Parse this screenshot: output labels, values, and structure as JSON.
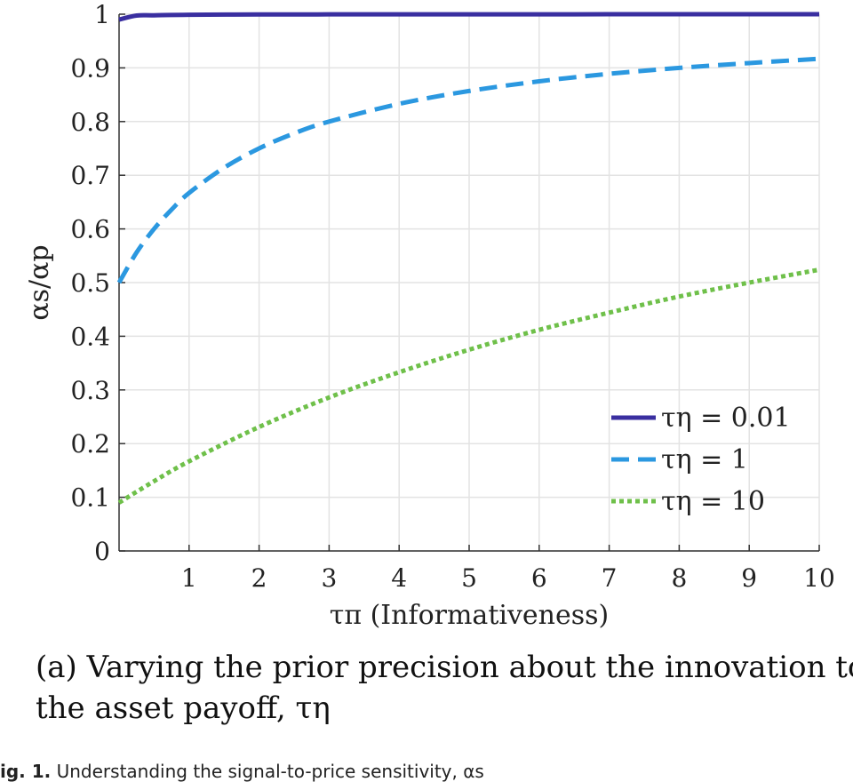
{
  "chart_data": {
    "type": "line",
    "xlabel": "τπ (Informativeness)",
    "ylabel": "αs/αp",
    "xlim": [
      0,
      10
    ],
    "ylim": [
      0,
      1
    ],
    "grid": true,
    "x_ticks": [
      "1",
      "2",
      "3",
      "4",
      "5",
      "6",
      "7",
      "8",
      "9",
      "10"
    ],
    "y_ticks": [
      "0",
      "0.1",
      "0.2",
      "0.3",
      "0.4",
      "0.5",
      "0.6",
      "0.7",
      "0.8",
      "0.9",
      "1"
    ],
    "legend_position": "bottom-right",
    "series": [
      {
        "name": "τη = 0.01",
        "color": "#3a2fa0",
        "style": "solid",
        "x": [
          0,
          0.25,
          0.5,
          1,
          2,
          3,
          4,
          5,
          6,
          7,
          8,
          9,
          10
        ],
        "y": [
          0.99,
          0.9975,
          0.998,
          0.999,
          0.9995,
          0.9997,
          0.9998,
          0.9998,
          0.9998,
          0.9999,
          0.9999,
          0.9999,
          0.9999
        ]
      },
      {
        "name": "τη = 1",
        "color": "#2b98e0",
        "style": "dashed",
        "x": [
          0,
          0.25,
          0.5,
          0.75,
          1,
          1.5,
          2,
          2.5,
          3,
          4,
          5,
          6,
          7,
          8,
          9,
          10
        ],
        "y": [
          0.5,
          0.556,
          0.6,
          0.636,
          0.667,
          0.714,
          0.75,
          0.778,
          0.8,
          0.833,
          0.857,
          0.875,
          0.889,
          0.9,
          0.909,
          0.917
        ]
      },
      {
        "name": "τη = 10",
        "color": "#6fc04a",
        "style": "dotted",
        "x": [
          0,
          0.5,
          1,
          2,
          3,
          4,
          5,
          6,
          7,
          8,
          9,
          10
        ],
        "y": [
          0.09,
          0.13,
          0.167,
          0.231,
          0.286,
          0.333,
          0.375,
          0.412,
          0.444,
          0.474,
          0.5,
          0.524
        ]
      }
    ]
  },
  "caption": {
    "line1": "(a) Varying the prior precision about the innovation to",
    "line2": "the asset payoff, τη"
  },
  "fig_note": {
    "label": "ig. 1.",
    "text": "Understanding the signal-to-price sensitivity, αs"
  }
}
